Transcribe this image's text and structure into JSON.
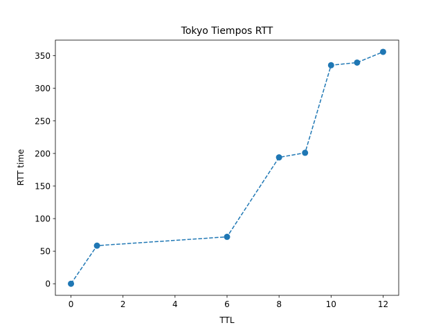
{
  "chart_data": {
    "type": "line",
    "title": "Tokyo Tiempos RTT",
    "xlabel": "TTL",
    "ylabel": "RTT time",
    "xlim": [
      -0.6,
      12.6
    ],
    "ylim": [
      -17.8,
      374.0
    ],
    "xticks": [
      0,
      2,
      4,
      6,
      8,
      10,
      12
    ],
    "yticks": [
      0,
      50,
      100,
      150,
      200,
      250,
      300,
      350
    ],
    "grid": false,
    "legend": "none",
    "series": [
      {
        "line_style": "dashed",
        "marker": "circle",
        "color": "#1f77b4",
        "x": [
          0,
          1,
          6,
          8,
          9,
          10,
          11,
          12
        ],
        "y": [
          0,
          58.5,
          72,
          194,
          201,
          335.5,
          339.5,
          356
        ]
      }
    ]
  }
}
